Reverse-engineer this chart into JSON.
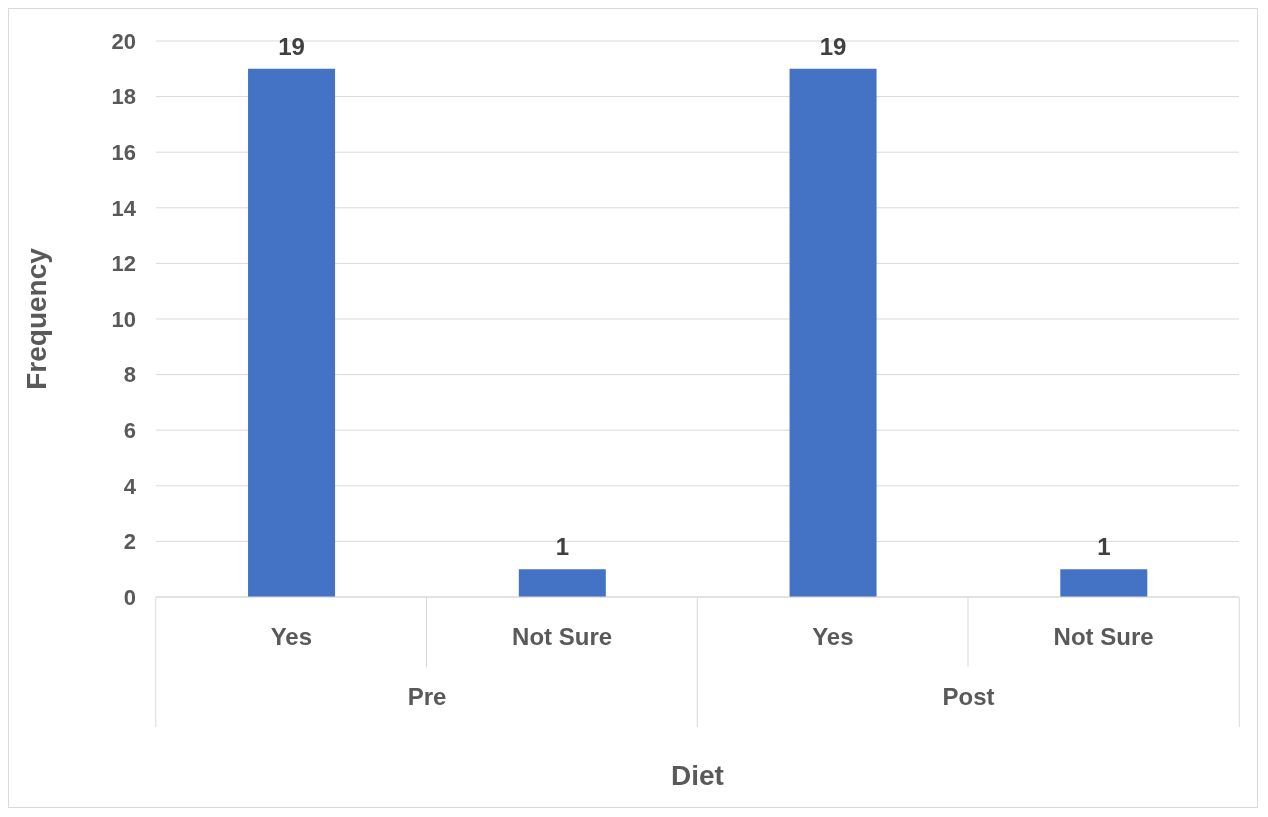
{
  "chart_data": {
    "type": "bar",
    "xlabel": "Diet",
    "ylabel": "Frequency",
    "categories": [
      "Yes",
      "Not Sure",
      "Yes",
      "Not Sure"
    ],
    "values": [
      19,
      1,
      19,
      1
    ],
    "color": "#4472c4",
    "ylim": [
      0,
      20
    ],
    "yticks": [
      0,
      2,
      4,
      6,
      8,
      10,
      12,
      14,
      16,
      18,
      20
    ],
    "grid": "y",
    "data_labels": true,
    "annotations": [
      "Pre",
      "Post"
    ]
  }
}
